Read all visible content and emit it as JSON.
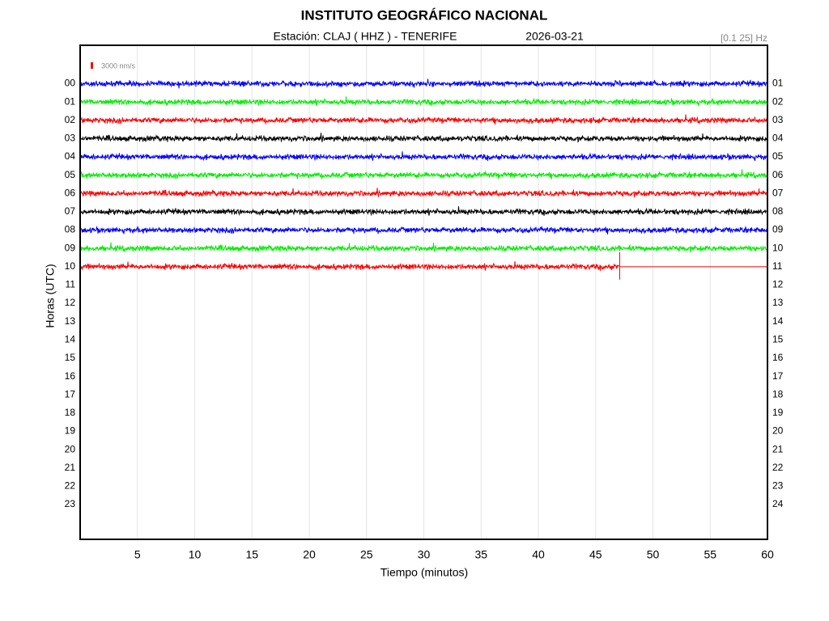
{
  "chart_data": {
    "type": "helicorder",
    "title": "INSTITUTO GEOGRÁFICO NACIONAL",
    "station": "Estación:  CLAJ ( HHZ ) - TENERIFE",
    "date": "2026-03-21",
    "band": "[0.1 25] Hz",
    "scale_label": "3000 nm/s",
    "scale_color": "#ff0000",
    "xlabel": "Tiempo (minutos)",
    "ylabel": "Horas (UTC)",
    "xlim": [
      0,
      60
    ],
    "xticks": [
      5,
      10,
      15,
      20,
      25,
      30,
      35,
      40,
      45,
      50,
      55,
      60
    ],
    "ylim": [
      -2.1,
      24.9
    ],
    "grid": true,
    "yticks": [
      {
        "value": 0,
        "label": "00"
      },
      {
        "value": 1,
        "label": "01"
      },
      {
        "value": 2,
        "label": "02"
      },
      {
        "value": 3,
        "label": "03"
      },
      {
        "value": 4,
        "label": "04"
      },
      {
        "value": 5,
        "label": "05"
      },
      {
        "value": 6,
        "label": "06"
      },
      {
        "value": 7,
        "label": "07"
      },
      {
        "value": 8,
        "label": "08"
      },
      {
        "value": 9,
        "label": "09"
      },
      {
        "value": 10,
        "label": "10"
      },
      {
        "value": 11,
        "label": "11"
      },
      {
        "value": 12,
        "label": "12"
      },
      {
        "value": 13,
        "label": "13"
      },
      {
        "value": 14,
        "label": "14"
      },
      {
        "value": 15,
        "label": "15"
      },
      {
        "value": 16,
        "label": "16"
      },
      {
        "value": 17,
        "label": "17"
      },
      {
        "value": 18,
        "label": "18"
      },
      {
        "value": 19,
        "label": "19"
      },
      {
        "value": 20,
        "label": "20"
      },
      {
        "value": 21,
        "label": "21"
      },
      {
        "value": 22,
        "label": "22"
      },
      {
        "value": 23,
        "label": "23"
      }
    ],
    "y2ticks": [
      {
        "value": 0,
        "label": "01"
      },
      {
        "value": 1,
        "label": "02"
      },
      {
        "value": 2,
        "label": "03"
      },
      {
        "value": 3,
        "label": "04"
      },
      {
        "value": 4,
        "label": "05"
      },
      {
        "value": 5,
        "label": "06"
      },
      {
        "value": 6,
        "label": "07"
      },
      {
        "value": 7,
        "label": "08"
      },
      {
        "value": 8,
        "label": "09"
      },
      {
        "value": 9,
        "label": "10"
      },
      {
        "value": 10,
        "label": "11"
      },
      {
        "value": 11,
        "label": "12"
      },
      {
        "value": 12,
        "label": "13"
      },
      {
        "value": 13,
        "label": "14"
      },
      {
        "value": 14,
        "label": "15"
      },
      {
        "value": 15,
        "label": "16"
      },
      {
        "value": 16,
        "label": "17"
      },
      {
        "value": 17,
        "label": "18"
      },
      {
        "value": 18,
        "label": "19"
      },
      {
        "value": 19,
        "label": "20"
      },
      {
        "value": 20,
        "label": "21"
      },
      {
        "value": 21,
        "label": "22"
      },
      {
        "value": 22,
        "label": "23"
      },
      {
        "value": 23,
        "label": "24"
      }
    ],
    "traces": [
      {
        "row": 0,
        "color": "#0000ff",
        "end": 60
      },
      {
        "row": 1,
        "color": "#00ee00",
        "end": 60
      },
      {
        "row": 2,
        "color": "#ff0000",
        "end": 60
      },
      {
        "row": 3,
        "color": "#000000",
        "end": 60
      },
      {
        "row": 4,
        "color": "#0000ff",
        "end": 60
      },
      {
        "row": 5,
        "color": "#00ee00",
        "end": 60
      },
      {
        "row": 6,
        "color": "#ff0000",
        "end": 60
      },
      {
        "row": 7,
        "color": "#000000",
        "end": 60
      },
      {
        "row": 8,
        "color": "#0000ff",
        "end": 60
      },
      {
        "row": 9,
        "color": "#00ee00",
        "end": 60
      },
      {
        "row": 10,
        "color": "#ff0000",
        "end": 47.1
      }
    ]
  }
}
